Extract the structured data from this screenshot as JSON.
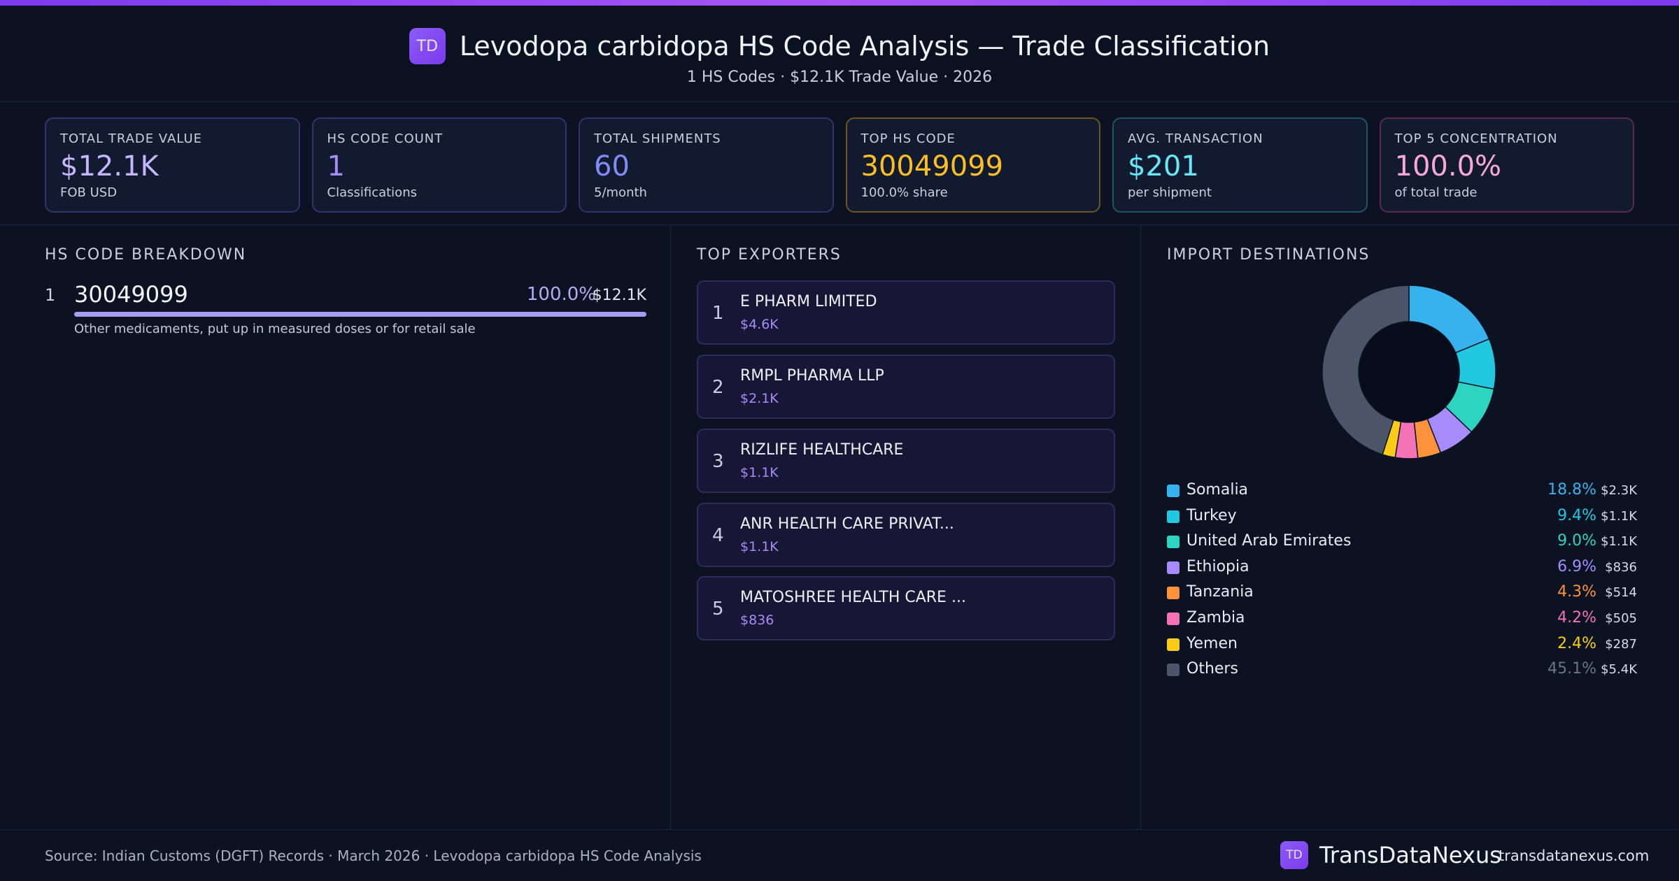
{
  "header": {
    "logo": "TD",
    "title": "Levodopa carbidopa HS Code Analysis — Trade Classification",
    "subtitle": "1 HS Codes · $12.1K Trade Value · 2026"
  },
  "kpis": [
    {
      "label": "TOTAL TRADE VALUE",
      "value": "$12.1K",
      "sub": "FOB USD",
      "color": "#c4b5fd",
      "border": "#3b2f70"
    },
    {
      "label": "HS CODE COUNT",
      "value": "1",
      "sub": "Classifications",
      "color": "#a78bfa",
      "border": "#3b2f70"
    },
    {
      "label": "TOTAL SHIPMENTS",
      "value": "60",
      "sub": "5/month",
      "color": "#818cf8",
      "border": "#33326e"
    },
    {
      "label": "TOP HS CODE",
      "value": "30049099",
      "sub": "100.0% share",
      "color": "#fbbf24",
      "border": "#6b5620"
    },
    {
      "label": "AVG. TRANSACTION",
      "value": "$201",
      "sub": "per shipment",
      "color": "#67e8f9",
      "border": "#1f5564"
    },
    {
      "label": "TOP 5 CONCENTRATION",
      "value": "100.0%",
      "sub": "of total trade",
      "color": "#f9a8d4",
      "border": "#5e2a4b"
    }
  ],
  "sections": {
    "hs": "HS CODE BREAKDOWN",
    "exporters": "TOP EXPORTERS",
    "destinations": "IMPORT DESTINATIONS"
  },
  "hs_codes": [
    {
      "rank": "1",
      "code": "30049099",
      "pct": "100.0%",
      "share": 1.0,
      "value": "$12.1K",
      "desc": "Other medicaments, put up in measured doses or for retail sale"
    }
  ],
  "exporters": [
    {
      "rank": "1",
      "name": "E PHARM LIMITED",
      "value": "$4.6K"
    },
    {
      "rank": "2",
      "name": "RMPL PHARMA LLP",
      "value": "$2.1K"
    },
    {
      "rank": "3",
      "name": "RIZLIFE HEALTHCARE",
      "value": "$1.1K"
    },
    {
      "rank": "4",
      "name": "ANR HEALTH CARE PRIVAT...",
      "value": "$1.1K"
    },
    {
      "rank": "5",
      "name": "MATOSHREE HEALTH CARE ...",
      "value": "$836"
    }
  ],
  "chart_data": {
    "type": "pie",
    "title": "IMPORT DESTINATIONS",
    "donut": true,
    "legend_position": "bottom",
    "slices": [
      {
        "name": "Somalia",
        "pct": 18.8,
        "pct_label": "18.8%",
        "value_label": "$2.3K",
        "color": "#38b2ec"
      },
      {
        "name": "Turkey",
        "pct": 9.4,
        "pct_label": "9.4%",
        "value_label": "$1.1K",
        "color": "#22c8e0"
      },
      {
        "name": "United Arab Emirates",
        "pct": 9.0,
        "pct_label": "9.0%",
        "value_label": "$1.1K",
        "color": "#2dd4bf"
      },
      {
        "name": "Ethiopia",
        "pct": 6.9,
        "pct_label": "6.9%",
        "value_label": "$836",
        "color": "#a78bfa"
      },
      {
        "name": "Tanzania",
        "pct": 4.3,
        "pct_label": "4.3%",
        "value_label": "$514",
        "color": "#fb923c"
      },
      {
        "name": "Zambia",
        "pct": 4.2,
        "pct_label": "4.2%",
        "value_label": "$505",
        "color": "#f472b6"
      },
      {
        "name": "Yemen",
        "pct": 2.4,
        "pct_label": "2.4%",
        "value_label": "$287",
        "color": "#facc15"
      },
      {
        "name": "Others",
        "pct": 45.1,
        "pct_label": "45.1%",
        "value_label": "$5.4K",
        "color": "#4b5567"
      }
    ]
  },
  "footer": {
    "source": "Source: Indian Customs (DGFT) Records · March 2026 · Levodopa carbidopa HS Code Analysis",
    "logo": "TD",
    "brand": "TransDataNexus",
    "site": "transdatanexus.com"
  }
}
